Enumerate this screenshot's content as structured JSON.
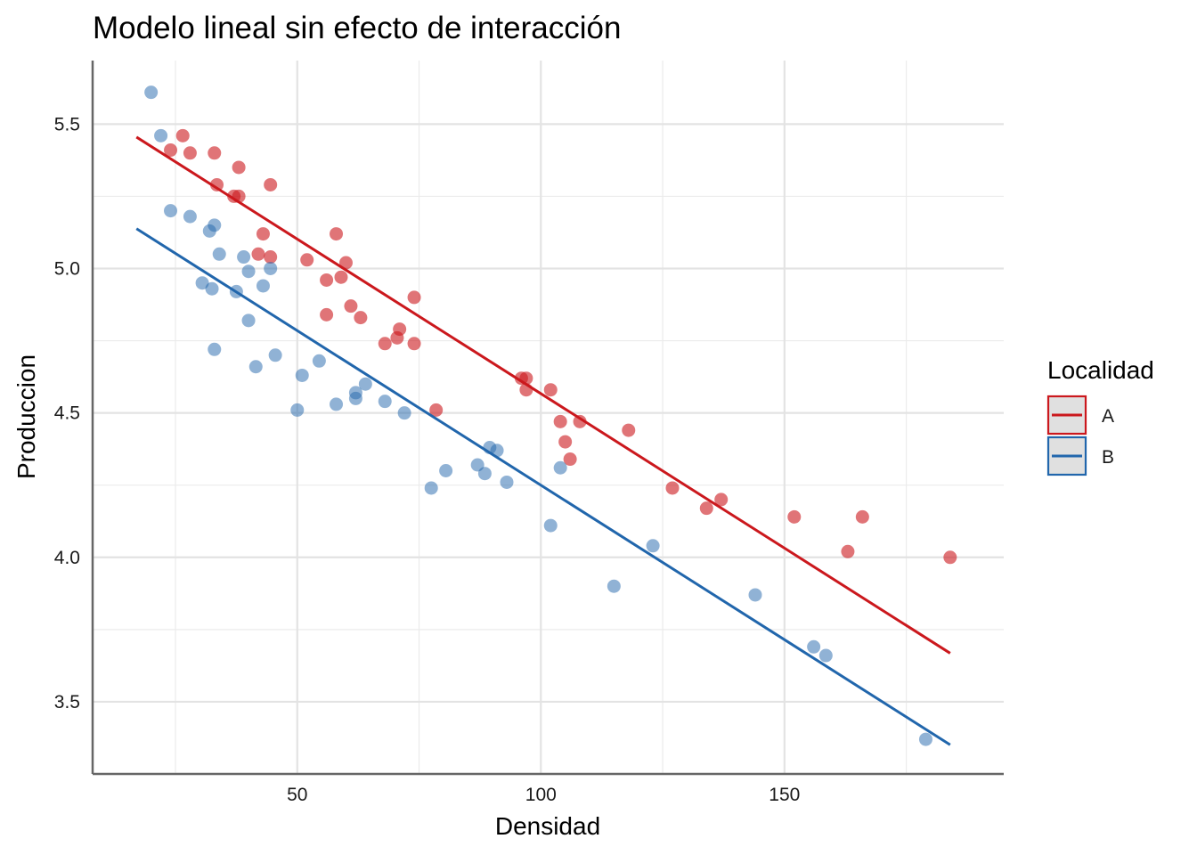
{
  "chart_data": {
    "type": "scatter",
    "title": "Modelo lineal sin efecto de interacción",
    "xlabel": "Densidad",
    "ylabel": "Produccion",
    "xlim": [
      8,
      195
    ],
    "ylim": [
      3.25,
      5.72
    ],
    "x_ticks": [
      50,
      100,
      150
    ],
    "x_minor": [
      25,
      75,
      125,
      175
    ],
    "y_ticks": [
      3.5,
      4.0,
      4.5,
      5.0,
      5.5
    ],
    "y_tick_labels": [
      "3.5",
      "4.0",
      "4.5",
      "5.0",
      "5.5"
    ],
    "y_minor": [
      3.75,
      4.25,
      4.75,
      5.25
    ],
    "grid": true,
    "legend": {
      "title": "Localidad",
      "position": "right"
    },
    "series": [
      {
        "name": "A",
        "color": "#CB181D",
        "fit_line": {
          "x": [
            17,
            184
          ],
          "y": [
            5.455,
            3.668
          ]
        },
        "points": [
          [
            24,
            5.41
          ],
          [
            26.5,
            5.46
          ],
          [
            28,
            5.4
          ],
          [
            33,
            5.4
          ],
          [
            33.5,
            5.29
          ],
          [
            37,
            5.25
          ],
          [
            38,
            5.35
          ],
          [
            38,
            5.25
          ],
          [
            44.5,
            5.29
          ],
          [
            42,
            5.05
          ],
          [
            43,
            5.12
          ],
          [
            44.5,
            5.04
          ],
          [
            52,
            5.03
          ],
          [
            58,
            5.12
          ],
          [
            60,
            5.02
          ],
          [
            59,
            4.97
          ],
          [
            56,
            4.96
          ],
          [
            56,
            4.84
          ],
          [
            61,
            4.87
          ],
          [
            63,
            4.83
          ],
          [
            74,
            4.9
          ],
          [
            68,
            4.74
          ],
          [
            70.5,
            4.76
          ],
          [
            71,
            4.79
          ],
          [
            74,
            4.74
          ],
          [
            78.5,
            4.51
          ],
          [
            96,
            4.62
          ],
          [
            97,
            4.62
          ],
          [
            97,
            4.58
          ],
          [
            102,
            4.58
          ],
          [
            104,
            4.47
          ],
          [
            108,
            4.47
          ],
          [
            105,
            4.4
          ],
          [
            106,
            4.34
          ],
          [
            118,
            4.44
          ],
          [
            127,
            4.24
          ],
          [
            134,
            4.17
          ],
          [
            137,
            4.2
          ],
          [
            152,
            4.14
          ],
          [
            166,
            4.14
          ],
          [
            163,
            4.02
          ],
          [
            184,
            4.0
          ]
        ]
      },
      {
        "name": "B",
        "color": "#2166AC",
        "fit_line": {
          "x": [
            17,
            184
          ],
          "y": [
            5.138,
            3.351
          ]
        },
        "points": [
          [
            20,
            5.61
          ],
          [
            22,
            5.46
          ],
          [
            24,
            5.2
          ],
          [
            28,
            5.18
          ],
          [
            32,
            5.13
          ],
          [
            33,
            5.15
          ],
          [
            34,
            5.05
          ],
          [
            30.5,
            4.95
          ],
          [
            32.5,
            4.93
          ],
          [
            37.5,
            4.92
          ],
          [
            39,
            5.04
          ],
          [
            40,
            4.99
          ],
          [
            43,
            4.94
          ],
          [
            44.5,
            5.0
          ],
          [
            40,
            4.82
          ],
          [
            33,
            4.72
          ],
          [
            41.5,
            4.66
          ],
          [
            45.5,
            4.7
          ],
          [
            51,
            4.63
          ],
          [
            54.5,
            4.68
          ],
          [
            50,
            4.51
          ],
          [
            58,
            4.53
          ],
          [
            62,
            4.57
          ],
          [
            62,
            4.55
          ],
          [
            64,
            4.6
          ],
          [
            68,
            4.54
          ],
          [
            72,
            4.5
          ],
          [
            80.5,
            4.3
          ],
          [
            77.5,
            4.24
          ],
          [
            87,
            4.32
          ],
          [
            88.5,
            4.29
          ],
          [
            89.5,
            4.38
          ],
          [
            91,
            4.37
          ],
          [
            93,
            4.26
          ],
          [
            104,
            4.31
          ],
          [
            102,
            4.11
          ],
          [
            115,
            3.9
          ],
          [
            123,
            4.04
          ],
          [
            144,
            3.87
          ],
          [
            156,
            3.69
          ],
          [
            158.5,
            3.66
          ],
          [
            179,
            3.37
          ]
        ]
      }
    ]
  }
}
